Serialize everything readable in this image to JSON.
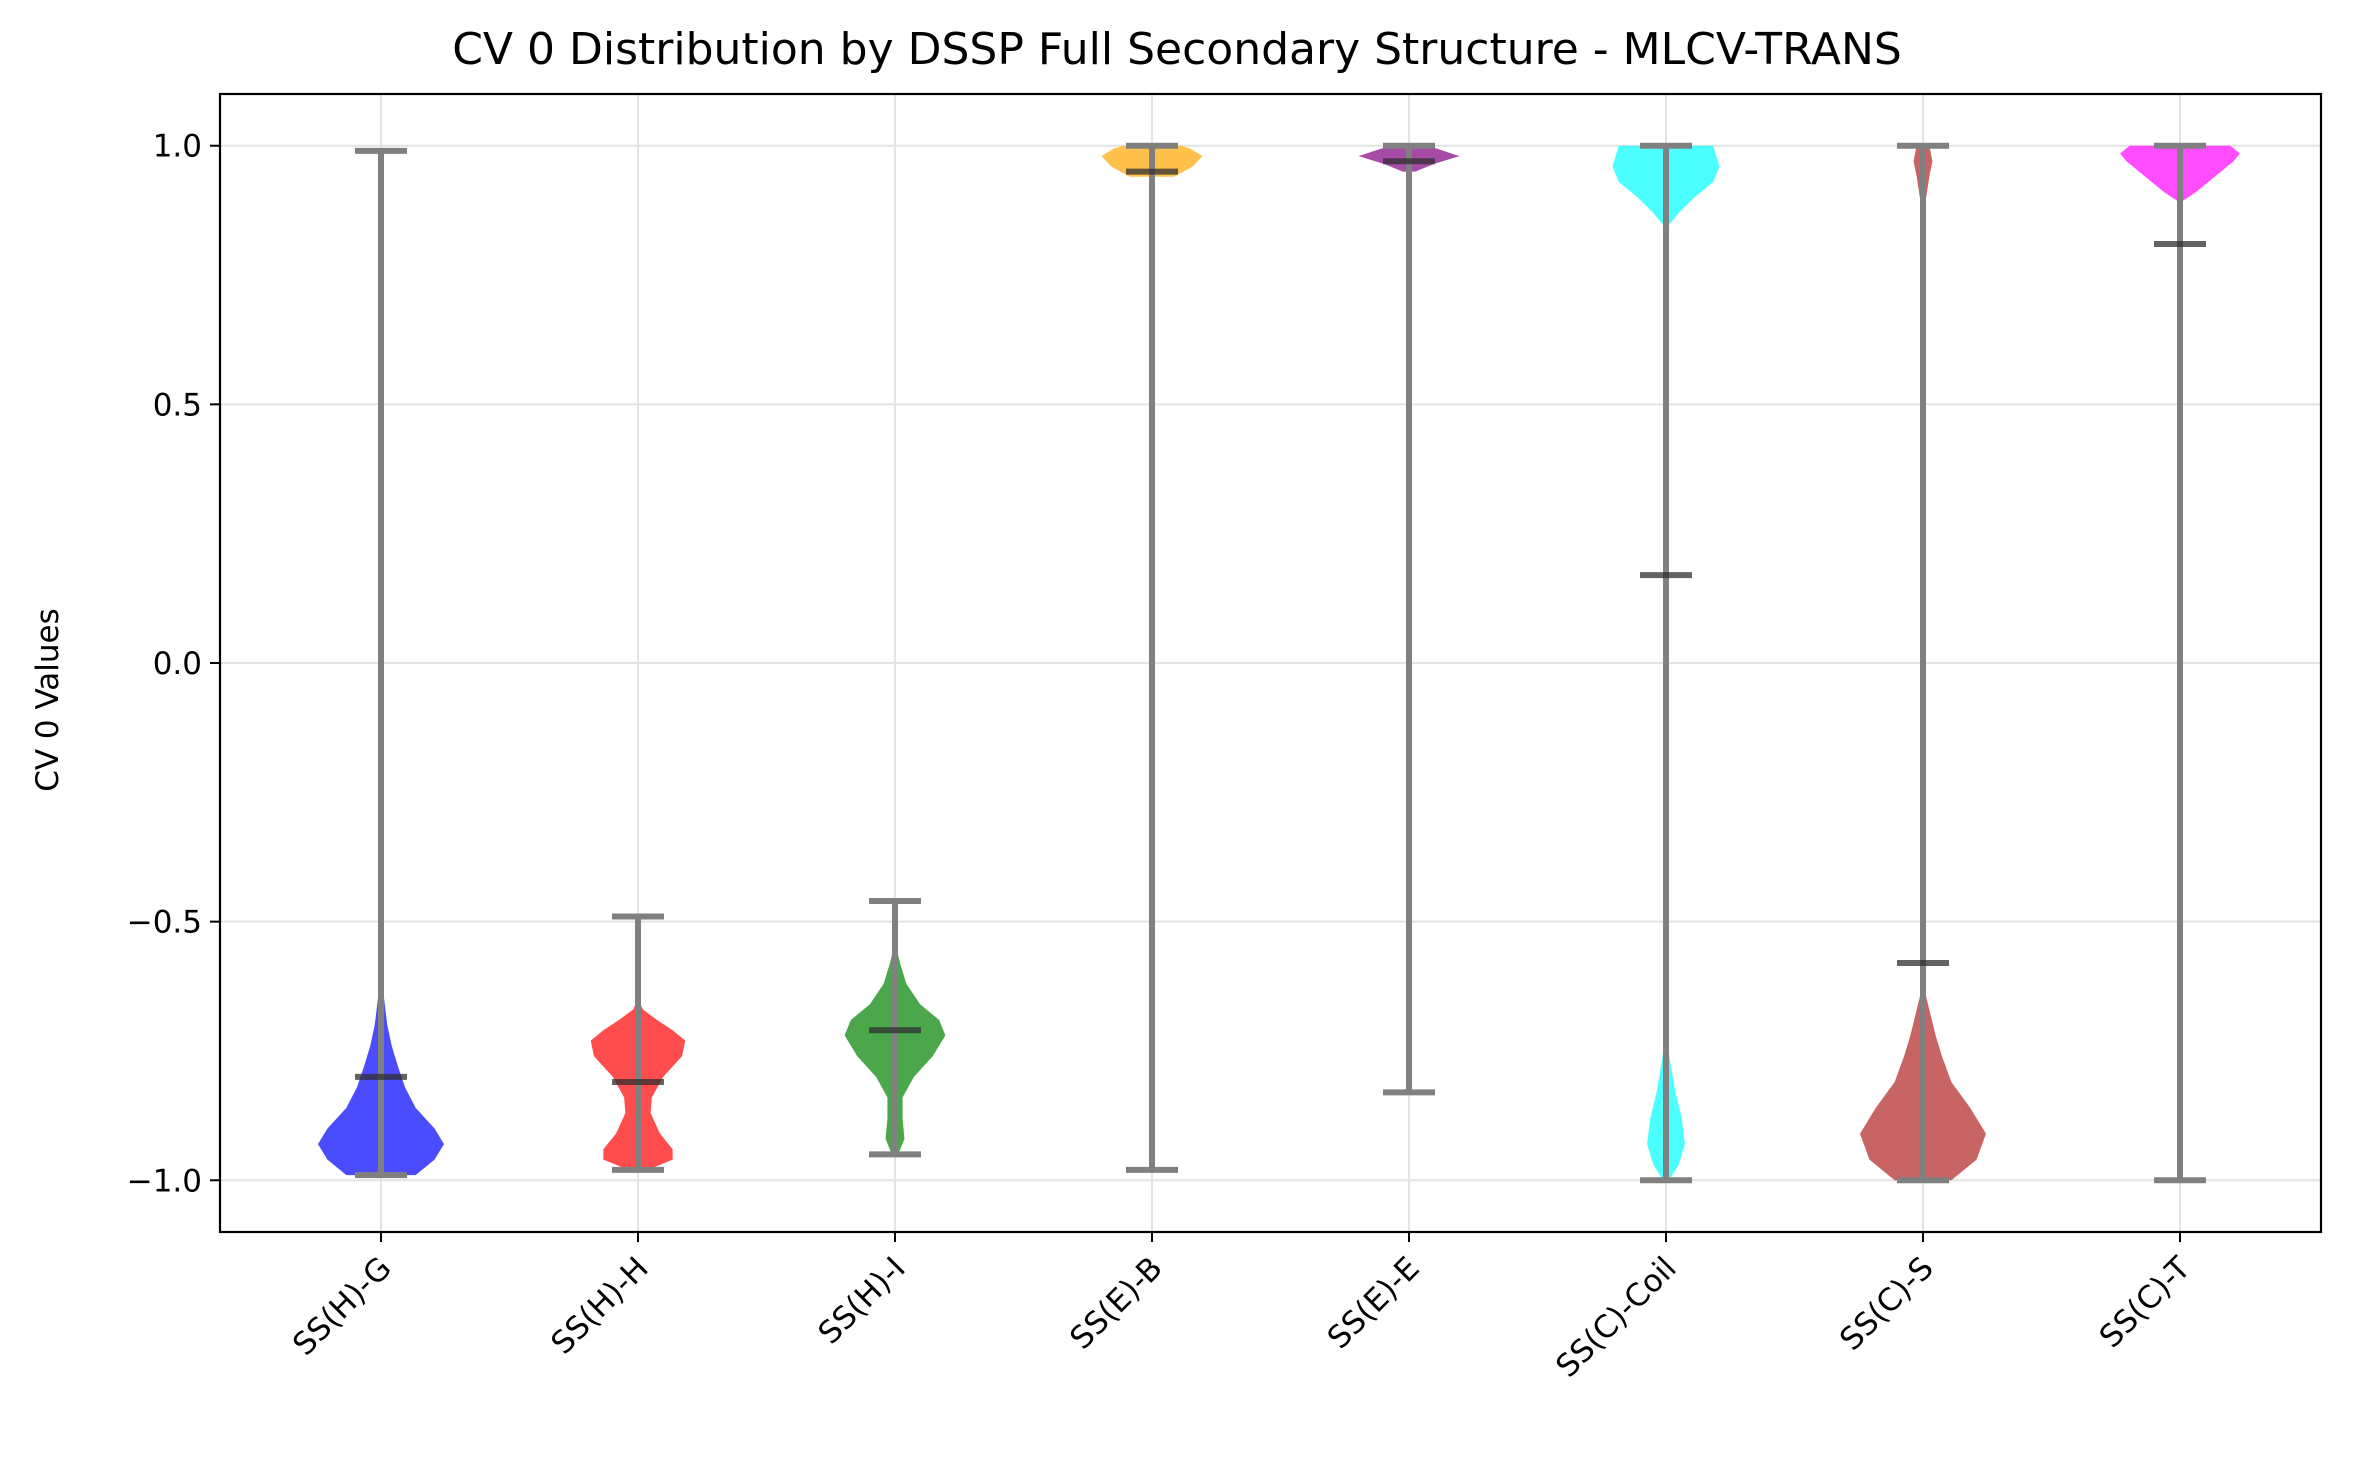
{
  "chart_data": {
    "type": "violin",
    "title": "CV 0 Distribution by DSSP Full Secondary Structure - MLCV-TRANS",
    "xlabel": "",
    "ylabel": "CV 0 Values",
    "ylim": [
      -1.1,
      1.1
    ],
    "yticks": [
      1.0,
      0.5,
      0.0,
      -0.5,
      -1.0
    ],
    "ytick_labels": [
      "1.0",
      "0.5",
      "0.0",
      "−0.5",
      "−1.0"
    ],
    "grid": true,
    "categories": [
      "SS(H)-G",
      "SS(H)-H",
      "SS(H)-I",
      "SS(E)-B",
      "SS(E)-E",
      "SS(C)-Coil",
      "SS(C)-S",
      "SS(C)-T"
    ],
    "series": [
      {
        "category": "SS(H)-G",
        "color": "#0000ff",
        "min": -0.99,
        "max": 0.99,
        "median": -0.8,
        "density": [
          [
            -0.99,
            0.55
          ],
          [
            -0.96,
            0.85
          ],
          [
            -0.93,
            1.0
          ],
          [
            -0.9,
            0.85
          ],
          [
            -0.86,
            0.55
          ],
          [
            -0.82,
            0.38
          ],
          [
            -0.78,
            0.27
          ],
          [
            -0.74,
            0.17
          ],
          [
            -0.7,
            0.1
          ],
          [
            -0.65,
            0.05
          ],
          [
            -0.6,
            0.02
          ],
          [
            -0.55,
            0.0
          ]
        ]
      },
      {
        "category": "SS(H)-H",
        "color": "#ff0000",
        "min": -0.98,
        "max": -0.49,
        "median": -0.81,
        "density": [
          [
            -0.98,
            0.15
          ],
          [
            -0.96,
            0.55
          ],
          [
            -0.94,
            0.55
          ],
          [
            -0.91,
            0.35
          ],
          [
            -0.87,
            0.2
          ],
          [
            -0.84,
            0.22
          ],
          [
            -0.8,
            0.4
          ],
          [
            -0.76,
            0.7
          ],
          [
            -0.73,
            0.75
          ],
          [
            -0.71,
            0.55
          ],
          [
            -0.69,
            0.3
          ],
          [
            -0.67,
            0.08
          ],
          [
            -0.65,
            0.0
          ]
        ]
      },
      {
        "category": "SS(H)-I",
        "color": "#008000",
        "min": -0.95,
        "max": -0.46,
        "median": -0.71,
        "density": [
          [
            -0.95,
            0.05
          ],
          [
            -0.92,
            0.15
          ],
          [
            -0.88,
            0.12
          ],
          [
            -0.84,
            0.12
          ],
          [
            -0.8,
            0.3
          ],
          [
            -0.76,
            0.6
          ],
          [
            -0.72,
            0.8
          ],
          [
            -0.69,
            0.7
          ],
          [
            -0.66,
            0.4
          ],
          [
            -0.62,
            0.18
          ],
          [
            -0.58,
            0.08
          ],
          [
            -0.54,
            0.0
          ]
        ]
      },
      {
        "category": "SS(E)-B",
        "color": "#ffa500",
        "min": -0.98,
        "max": 1.0,
        "median": 0.95,
        "density": [
          [
            0.94,
            0.35
          ],
          [
            0.96,
            0.65
          ],
          [
            0.98,
            0.8
          ],
          [
            0.995,
            0.6
          ],
          [
            1.0,
            0.45
          ]
        ]
      },
      {
        "category": "SS(E)-E",
        "color": "#800080",
        "min": -0.83,
        "max": 1.0,
        "median": 0.97,
        "density": [
          [
            0.95,
            0.1
          ],
          [
            0.965,
            0.4
          ],
          [
            0.98,
            0.8
          ],
          [
            0.99,
            0.55
          ],
          [
            1.0,
            0.3
          ]
        ]
      },
      {
        "category": "SS(C)-Coil",
        "color": "#00ffff",
        "min": -1.0,
        "max": 1.0,
        "median": 0.17,
        "density": [
          [
            -1.0,
            0.05
          ],
          [
            -0.97,
            0.2
          ],
          [
            -0.93,
            0.3
          ],
          [
            -0.88,
            0.25
          ],
          [
            -0.83,
            0.15
          ],
          [
            -0.78,
            0.08
          ],
          [
            -0.74,
            0.03
          ],
          [
            -0.7,
            0.0
          ],
          [
            0.84,
            0.0
          ],
          [
            0.87,
            0.2
          ],
          [
            0.9,
            0.45
          ],
          [
            0.93,
            0.75
          ],
          [
            0.96,
            0.85
          ],
          [
            0.98,
            0.8
          ],
          [
            1.0,
            0.75
          ]
        ]
      },
      {
        "category": "SS(C)-S",
        "color": "#b22222",
        "min": -1.0,
        "max": 1.0,
        "median": -0.58,
        "density": [
          [
            -1.0,
            0.45
          ],
          [
            -0.96,
            0.85
          ],
          [
            -0.91,
            1.0
          ],
          [
            -0.86,
            0.75
          ],
          [
            -0.81,
            0.45
          ],
          [
            -0.76,
            0.3
          ],
          [
            -0.72,
            0.2
          ],
          [
            -0.68,
            0.12
          ],
          [
            -0.64,
            0.04
          ],
          [
            -0.6,
            0.0
          ],
          [
            0.86,
            0.0
          ],
          [
            0.9,
            0.05
          ],
          [
            0.94,
            0.1
          ],
          [
            0.97,
            0.15
          ],
          [
            1.0,
            0.1
          ]
        ]
      },
      {
        "category": "SS(C)-T",
        "color": "#ff00ff",
        "min": -1.0,
        "max": 1.0,
        "median": 0.81,
        "density": [
          [
            0.89,
            0.0
          ],
          [
            0.91,
            0.25
          ],
          [
            0.94,
            0.55
          ],
          [
            0.97,
            0.85
          ],
          [
            0.985,
            0.95
          ],
          [
            1.0,
            0.8
          ]
        ]
      }
    ]
  }
}
